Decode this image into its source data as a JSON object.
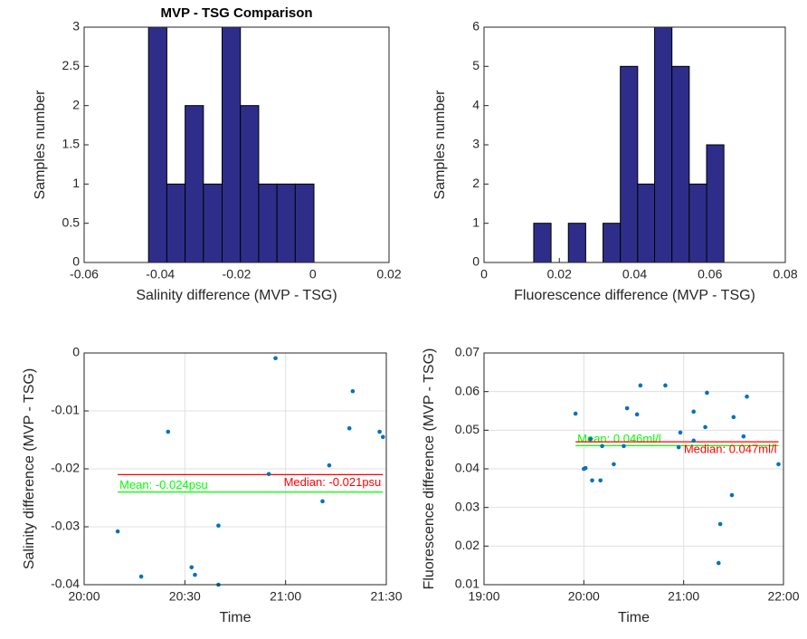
{
  "chart_data": [
    {
      "type": "histogram",
      "title": "MVP - TSG Comparison",
      "x_label": "Salinity difference (MVP - TSG)",
      "y_label": "Samples number",
      "bins": [
        -0.0431,
        -0.0383,
        -0.0335,
        -0.0287,
        -0.0238,
        -0.019,
        -0.0142,
        -0.0094,
        -0.0046,
        0.0003
      ],
      "values": [
        3,
        1,
        2,
        1,
        3,
        2,
        1,
        1,
        1
      ],
      "color": "#2e2e8a",
      "xlim": [
        -0.06,
        0.02
      ],
      "xticks": [
        -0.06,
        -0.04,
        -0.02,
        0,
        0.02
      ],
      "ylim": [
        0,
        3
      ],
      "yticks": [
        0,
        0.5,
        1,
        1.5,
        2,
        2.5,
        3
      ],
      "grid": false
    },
    {
      "type": "histogram",
      "x_label": "Fluorescence difference (MVP - TSG)",
      "y_label": "Samples number",
      "bins": [
        0.0132,
        0.0178,
        0.0224,
        0.027,
        0.0316,
        0.0362,
        0.0408,
        0.0453,
        0.0499,
        0.0545,
        0.0591,
        0.0637
      ],
      "values": [
        1,
        0,
        1,
        0,
        1,
        5,
        2,
        6,
        5,
        2,
        3
      ],
      "color": "#2e2e8a",
      "xlim": [
        0,
        0.08
      ],
      "xticks": [
        0,
        0.02,
        0.04,
        0.06,
        0.08
      ],
      "ylim": [
        0,
        6
      ],
      "yticks": [
        0,
        1,
        2,
        3,
        4,
        5,
        6
      ],
      "grid": false
    },
    {
      "type": "scatter",
      "x_label": "Time",
      "y_label": "Salinity difference (MVP - TSG)",
      "x": [
        "20:10",
        "20:17",
        "20:25",
        "20:32",
        "20:33",
        "20:40",
        "20:40",
        "20:55",
        "20:57",
        "21:11",
        "21:13",
        "21:19",
        "21:20",
        "21:28",
        "21:29"
      ],
      "values": [
        -0.0308,
        -0.0386,
        -0.0136,
        -0.037,
        -0.0383,
        -0.04,
        -0.0298,
        -0.0209,
        -0.0009,
        -0.0256,
        -0.0194,
        -0.013,
        -0.0066,
        -0.0136,
        -0.0145
      ],
      "color": "#0072bd",
      "xlim": [
        "20:00",
        "21:30"
      ],
      "xticks": [
        "20:00",
        "20:30",
        "21:00",
        "21:30"
      ],
      "ylim": [
        -0.04,
        0
      ],
      "yticks": [
        -0.04,
        -0.03,
        -0.02,
        -0.01,
        0
      ],
      "grid": true,
      "reference_lines": [
        {
          "label": "Mean: -0.024psu",
          "value": -0.024,
          "color": "#00ff00"
        },
        {
          "label": "Median: -0.021psu",
          "value": -0.021,
          "color": "#ff0000"
        }
      ]
    },
    {
      "type": "scatter",
      "x_label": "Time",
      "y_label": "Fluorescence difference (MVP - TSG)",
      "x": [
        "19:55",
        "20:00",
        "20:01",
        "20:04",
        "20:05",
        "20:10",
        "20:11",
        "20:18",
        "20:24",
        "20:26",
        "20:32",
        "20:34",
        "20:49",
        "20:57",
        "20:58",
        "21:06",
        "21:06",
        "21:13",
        "21:14",
        "21:21",
        "21:22",
        "21:29",
        "21:30",
        "21:36",
        "21:38",
        "21:57"
      ],
      "values": [
        0.0543,
        0.04,
        0.0402,
        0.0477,
        0.037,
        0.037,
        0.0459,
        0.0412,
        0.0459,
        0.0557,
        0.0541,
        0.0616,
        0.0616,
        0.0456,
        0.0494,
        0.0473,
        0.0548,
        0.0508,
        0.0597,
        0.0156,
        0.0257,
        0.0332,
        0.0534,
        0.0484,
        0.0587,
        0.0412
      ],
      "color": "#0072bd",
      "xlim": [
        "19:00",
        "22:00"
      ],
      "xticks": [
        "19:00",
        "20:00",
        "21:00",
        "22:00"
      ],
      "ylim": [
        0.01,
        0.07
      ],
      "yticks": [
        0.01,
        0.02,
        0.03,
        0.04,
        0.05,
        0.06,
        0.07
      ],
      "grid": true,
      "reference_lines": [
        {
          "label": "Mean: 0.046ml/l",
          "value": 0.046,
          "color": "#00ff00"
        },
        {
          "label": "Median: 0.047ml/l",
          "value": 0.047,
          "color": "#ff0000"
        }
      ]
    }
  ]
}
